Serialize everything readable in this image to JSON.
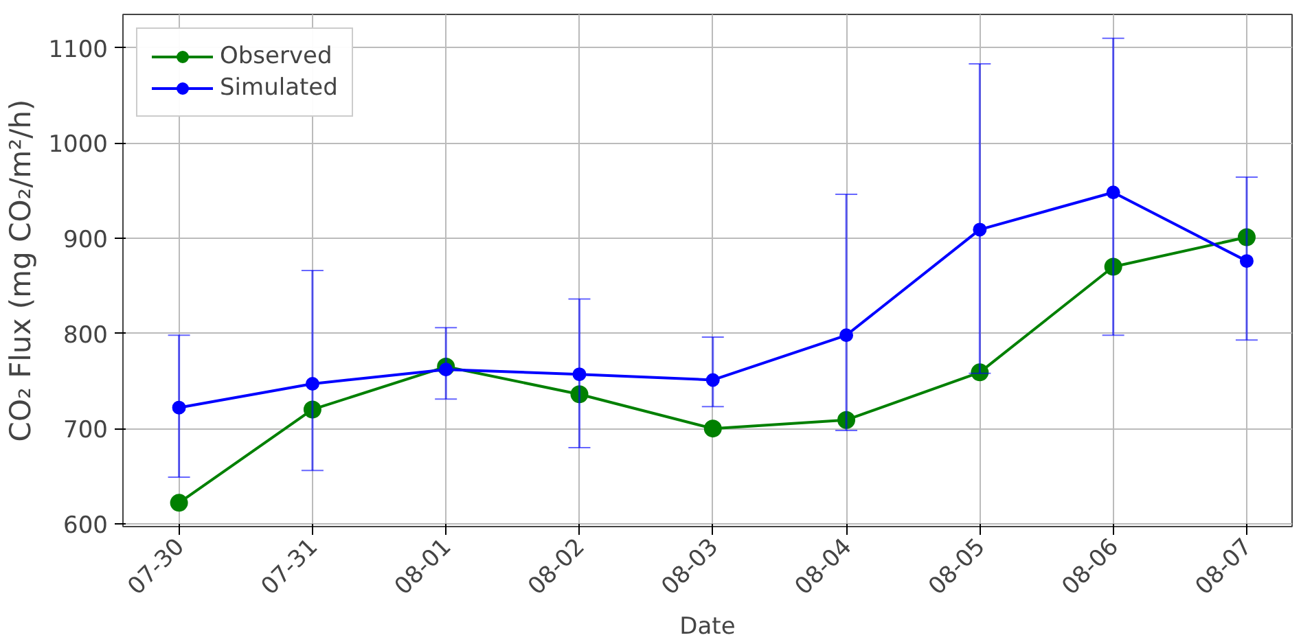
{
  "chart_data": {
    "type": "line",
    "xlabel": "Date",
    "ylabel": "CO₂ Flux (mg CO₂/m²/h)",
    "categories": [
      "07-30",
      "07-31",
      "08-01",
      "08-02",
      "08-03",
      "08-04",
      "08-05",
      "08-06",
      "08-07"
    ],
    "series": [
      {
        "name": "Observed",
        "color": "#008000",
        "values": [
          622,
          720,
          765,
          736,
          700,
          709,
          759,
          870,
          901
        ]
      },
      {
        "name": "Simulated",
        "color": "#0000ff",
        "values": [
          722,
          747,
          762,
          757,
          751,
          798,
          909,
          948,
          876
        ],
        "errors": [
          [
            649,
            798
          ],
          [
            656,
            866
          ],
          [
            731,
            806
          ],
          [
            680,
            836
          ],
          [
            723,
            796
          ],
          [
            698,
            946
          ],
          [
            758,
            1083
          ],
          [
            798,
            1110
          ],
          [
            793,
            964
          ]
        ]
      }
    ],
    "ylim": [
      597,
      1135
    ],
    "yticks": [
      600,
      700,
      800,
      900,
      1000,
      1100
    ],
    "grid": true,
    "legend": "top left",
    "marker": "circle",
    "line_style": "solid"
  }
}
